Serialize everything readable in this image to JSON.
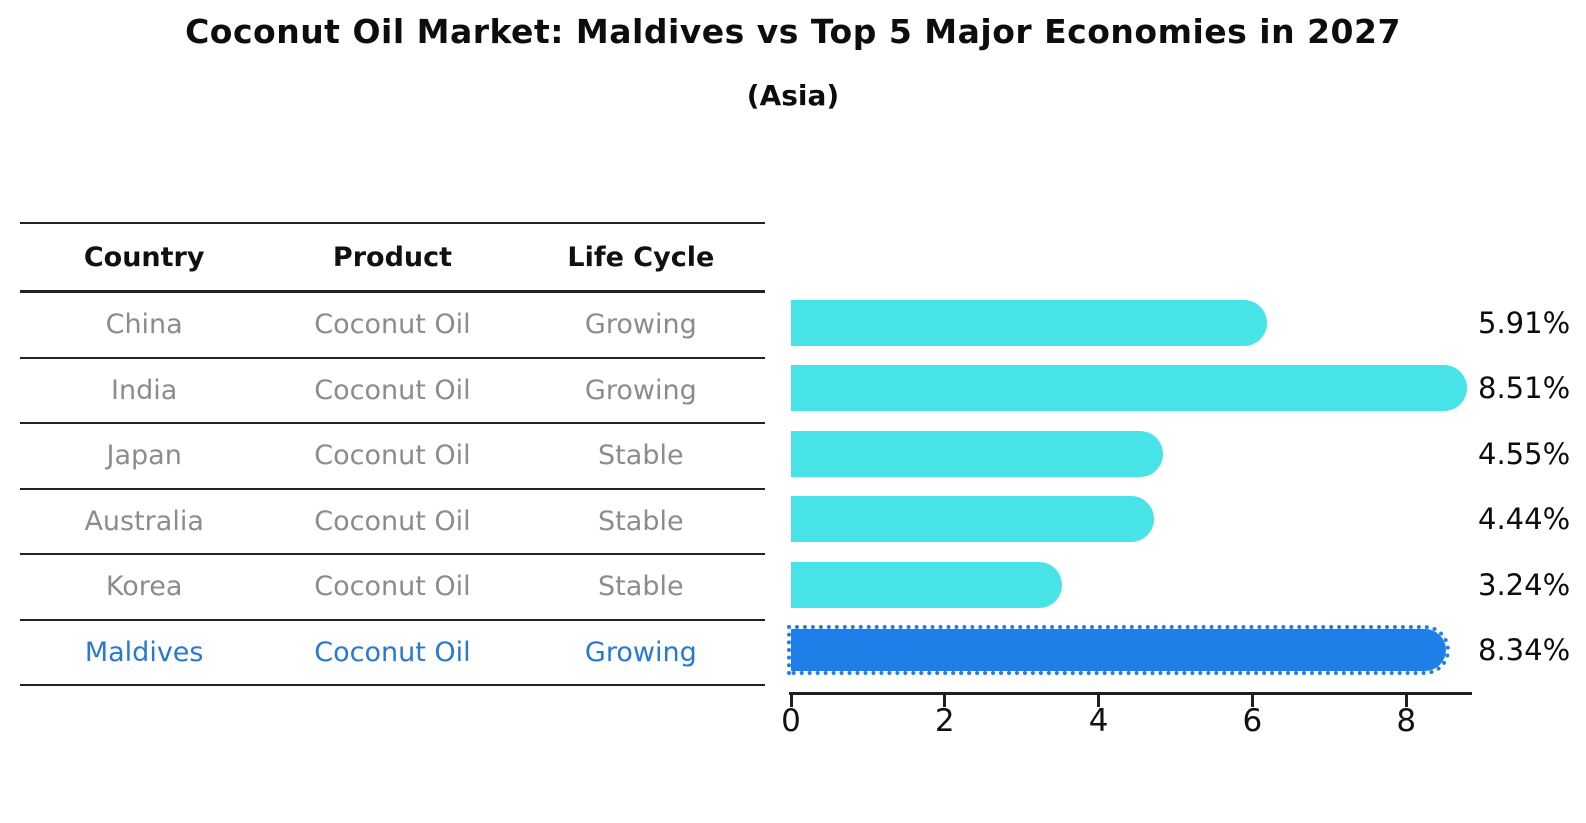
{
  "title": "Coconut Oil Market: Maldives vs Top 5 Major Economies in 2027",
  "subtitle": "(Asia)",
  "table": {
    "headers": [
      "Country",
      "Product",
      "Life Cycle"
    ],
    "rows": [
      {
        "country": "China",
        "product": "Coconut Oil",
        "life_cycle": "Growing",
        "highlighted": false
      },
      {
        "country": "India",
        "product": "Coconut Oil",
        "life_cycle": "Growing",
        "highlighted": false
      },
      {
        "country": "Japan",
        "product": "Coconut Oil",
        "life_cycle": "Stable",
        "highlighted": false
      },
      {
        "country": "Australia",
        "product": "Coconut Oil",
        "life_cycle": "Stable",
        "highlighted": false
      },
      {
        "country": "Korea",
        "product": "Coconut Oil",
        "life_cycle": "Stable",
        "highlighted": false
      },
      {
        "country": "Maldives",
        "product": "Coconut Oil",
        "life_cycle": "Growing",
        "highlighted": true
      }
    ]
  },
  "chart_data": {
    "type": "bar",
    "orientation": "horizontal",
    "title": "Coconut Oil Market: Maldives vs Top 5 Major Economies in 2027",
    "subtitle": "(Asia)",
    "categories": [
      "China",
      "India",
      "Japan",
      "Australia",
      "Korea",
      "Maldives"
    ],
    "values": [
      5.91,
      8.51,
      4.55,
      4.44,
      3.24,
      8.34
    ],
    "value_labels": [
      "5.91%",
      "8.51%",
      "4.55%",
      "4.44%",
      "3.24%",
      "8.34%"
    ],
    "xlabel": "",
    "ylabel": "",
    "xlim": [
      0,
      8.85
    ],
    "x_ticks": [
      0,
      2,
      4,
      6,
      8
    ],
    "highlight_index": 5,
    "grid": false,
    "legend": false
  },
  "colors": {
    "bar": "#48e3e6",
    "highlight_bar": "#1e7fe8",
    "highlight_text": "#2878d8",
    "table_text": "#8c8c8c",
    "header_text": "#111111",
    "line": "#222222",
    "label_text": "#0d0d0d"
  }
}
